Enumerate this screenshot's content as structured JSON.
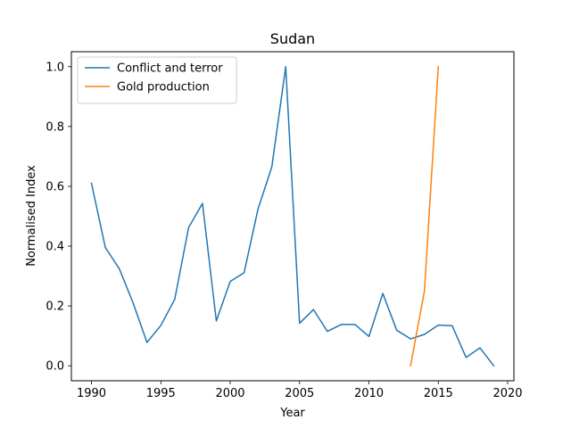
{
  "chart_data": {
    "type": "line",
    "title": "Sudan",
    "xlabel": "Year",
    "ylabel": "Normalised Index",
    "xlim": [
      1988.55,
      2020.45
    ],
    "ylim": [
      -0.05,
      1.05
    ],
    "xticks": [
      1990,
      1995,
      2000,
      2005,
      2010,
      2015,
      2020
    ],
    "yticks": [
      0.0,
      0.2,
      0.4,
      0.6,
      0.8,
      1.0
    ],
    "ytick_labels": [
      "0.0",
      "0.2",
      "0.4",
      "0.6",
      "0.8",
      "1.0"
    ],
    "grid": false,
    "legend_position": "top-left",
    "series": [
      {
        "name": "Conflict and terror",
        "color": "#1f77b4",
        "x": [
          1990,
          1991,
          1992,
          1993,
          1994,
          1995,
          1996,
          1997,
          1998,
          1999,
          2000,
          2001,
          2002,
          2003,
          2004,
          2005,
          2006,
          2007,
          2008,
          2009,
          2010,
          2011,
          2012,
          2013,
          2014,
          2015,
          2016,
          2017,
          2018,
          2019
        ],
        "y": [
          0.61,
          0.395,
          0.325,
          0.21,
          0.078,
          0.135,
          0.222,
          0.462,
          0.543,
          0.15,
          0.282,
          0.311,
          0.523,
          0.665,
          1.0,
          0.142,
          0.188,
          0.115,
          0.138,
          0.138,
          0.098,
          0.242,
          0.119,
          0.09,
          0.105,
          0.136,
          0.134,
          0.028,
          0.06,
          0.0
        ]
      },
      {
        "name": "Gold production",
        "color": "#ff7f0e",
        "x": [
          2013,
          2014,
          2015
        ],
        "y": [
          0.0,
          0.25,
          1.0
        ]
      }
    ]
  }
}
